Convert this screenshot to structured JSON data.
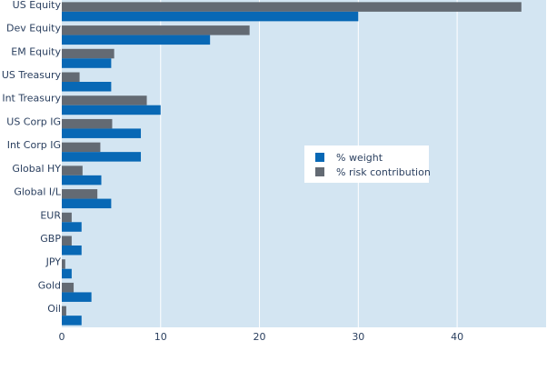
{
  "colors": {
    "plot_bg": "#d3e5f2",
    "grid": "#ffffff",
    "weight": "#0868b5",
    "risk": "#636a73",
    "text": "#2a3f5f"
  },
  "chart_data": {
    "type": "bar",
    "orientation": "horizontal",
    "title": "",
    "xlabel": "",
    "ylabel": "",
    "categories": [
      "US Equity",
      "Dev Equity",
      "EM Equity",
      "US Treasury",
      "Int Treasury",
      "US Corp IG",
      "Int Corp IG",
      "Global HY",
      "Global I/L",
      "EUR",
      "GBP",
      "JPY",
      "Gold",
      "Oil"
    ],
    "series": [
      {
        "name": "% weight",
        "color": "#0868b5",
        "values": [
          30,
          15,
          5,
          5,
          10,
          8,
          8,
          4,
          5,
          2,
          2,
          1,
          3,
          2
        ]
      },
      {
        "name": "% risk contribution",
        "color": "#636a73",
        "values": [
          46.5,
          19,
          5.3,
          1.8,
          8.6,
          5.1,
          3.9,
          2.1,
          3.6,
          1.0,
          1.0,
          0.35,
          1.2,
          0.45
        ]
      }
    ],
    "xlim": [
      0,
      49
    ],
    "xticks": [
      0,
      10,
      20,
      30,
      40
    ],
    "grid": true,
    "legend": {
      "placement": "right-center",
      "entries": [
        "% weight",
        "% risk contribution"
      ]
    }
  }
}
